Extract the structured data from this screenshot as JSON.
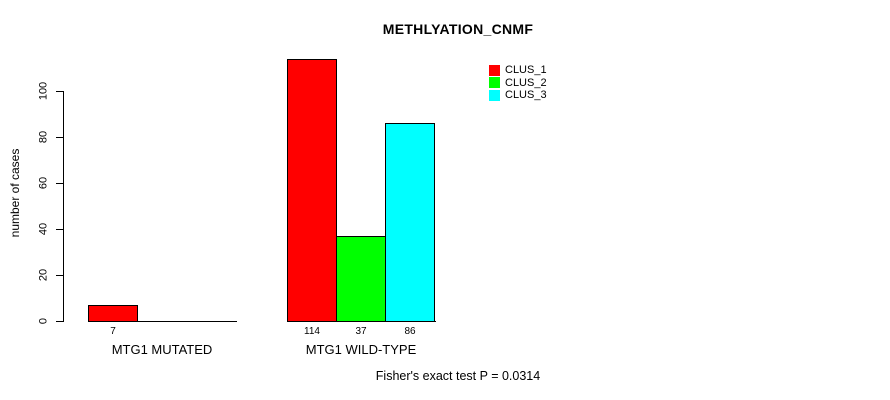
{
  "chart_data": {
    "type": "bar",
    "title": "METHLYATION_CNMF",
    "ylabel": "number of cases",
    "xlabel": "",
    "categories": [
      "MTG1 MUTATED",
      "MTG1 WILD-TYPE"
    ],
    "series": [
      {
        "name": "CLUS_1",
        "color": "#ff0000",
        "values": [
          7,
          114
        ]
      },
      {
        "name": "CLUS_2",
        "color": "#00ff00",
        "values": [
          0,
          37
        ]
      },
      {
        "name": "CLUS_3",
        "color": "#00ffff",
        "values": [
          0,
          86
        ]
      }
    ],
    "bar_labels": [
      [
        "7",
        "",
        ""
      ],
      [
        "114",
        "37",
        "86"
      ]
    ],
    "yticks": [
      0,
      20,
      40,
      60,
      80,
      100
    ],
    "ylim": [
      0,
      100
    ],
    "grid": false,
    "legend_position": "top-right",
    "annotation": "Fisher's exact test P = 0.0314"
  },
  "legend": {
    "items": [
      {
        "label": "CLUS_1",
        "color": "#ff0000"
      },
      {
        "label": "CLUS_2",
        "color": "#00ff00"
      },
      {
        "label": "CLUS_3",
        "color": "#00ffff"
      }
    ]
  },
  "colors": {
    "background": "#ffffff",
    "axis": "#000000",
    "clus_1": "#ff0000",
    "clus_2": "#00ff00",
    "clus_3": "#00ffff"
  }
}
